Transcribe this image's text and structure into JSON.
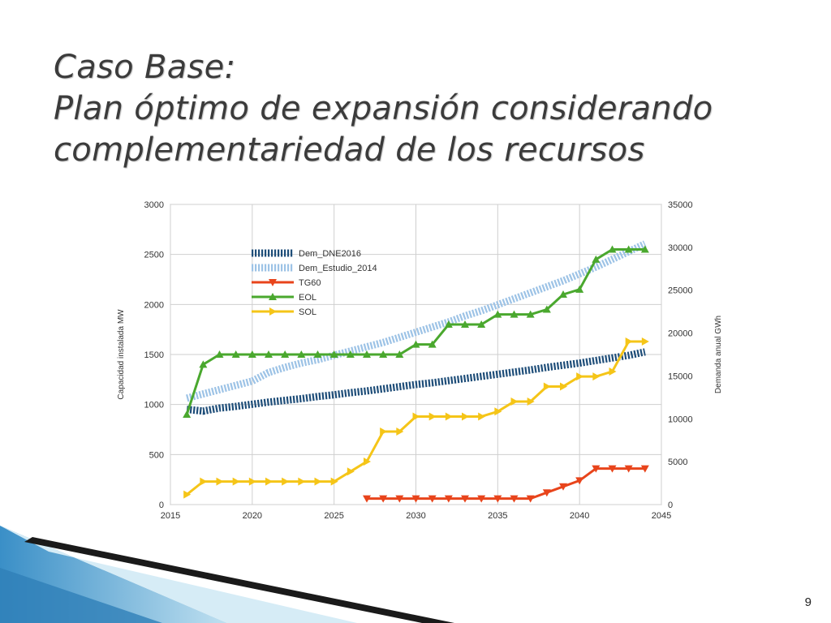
{
  "slide": {
    "title_line1": "Caso Base:",
    "title_line2": "Plan óptimo de expansión considerando",
    "title_line3": "complementariedad de los recursos",
    "page_number": "9"
  },
  "chart_data": {
    "type": "line",
    "title": "",
    "xlabel": "",
    "ylabel_left": "Capacidad instalada MW",
    "ylabel_right": "Demanda anual GWh",
    "xlim": [
      2015,
      2045
    ],
    "ylim_left": [
      0,
      3000
    ],
    "ylim_right": [
      0,
      35000
    ],
    "x_ticks": [
      2015,
      2020,
      2025,
      2030,
      2035,
      2040,
      2045
    ],
    "y_left_ticks": [
      0,
      500,
      1000,
      1500,
      2000,
      2500,
      3000
    ],
    "y_right_ticks": [
      0,
      5000,
      10000,
      15000,
      20000,
      25000,
      30000,
      35000
    ],
    "grid": true,
    "legend_position": "top-left",
    "series": [
      {
        "name": "Dem_DNE2016",
        "axis": "right",
        "color": "#1f4e79",
        "style": "dashed-thick",
        "marker": "none",
        "x": [
          2016,
          2017,
          2018,
          2019,
          2020,
          2021,
          2022,
          2023,
          2024,
          2025,
          2026,
          2027,
          2028,
          2029,
          2030,
          2031,
          2032,
          2033,
          2034,
          2035,
          2036,
          2037,
          2038,
          2039,
          2040,
          2041,
          2042,
          2043,
          2044
        ],
        "values": [
          11100,
          10900,
          11250,
          11450,
          11700,
          11950,
          12150,
          12350,
          12600,
          12800,
          13050,
          13250,
          13500,
          13750,
          14000,
          14200,
          14450,
          14700,
          14950,
          15200,
          15450,
          15700,
          16000,
          16250,
          16500,
          16800,
          17100,
          17400,
          17800
        ]
      },
      {
        "name": "Dem_Estudio_2014",
        "axis": "right",
        "color": "#9dc3e6",
        "style": "dashed-thick",
        "marker": "none",
        "x": [
          2016,
          2017,
          2018,
          2019,
          2020,
          2021,
          2022,
          2023,
          2024,
          2025,
          2026,
          2027,
          2028,
          2029,
          2030,
          2031,
          2032,
          2033,
          2034,
          2035,
          2036,
          2037,
          2038,
          2039,
          2040,
          2041,
          2042,
          2043,
          2044
        ],
        "values": [
          12400,
          12900,
          13400,
          13900,
          14400,
          15400,
          16000,
          16500,
          16900,
          17400,
          17900,
          18400,
          18900,
          19500,
          20100,
          20700,
          21300,
          22000,
          22600,
          23300,
          24000,
          24700,
          25400,
          26100,
          26900,
          27700,
          28600,
          29500,
          30400
        ]
      },
      {
        "name": "TG60",
        "axis": "left",
        "color": "#e8441b",
        "style": "solid",
        "marker": "triangle-down",
        "x": [
          2027,
          2028,
          2029,
          2030,
          2031,
          2032,
          2033,
          2034,
          2035,
          2036,
          2037,
          2038,
          2039,
          2040,
          2041,
          2042,
          2043,
          2044
        ],
        "values": [
          60,
          60,
          60,
          60,
          60,
          60,
          60,
          60,
          60,
          60,
          60,
          120,
          180,
          240,
          360,
          360,
          360,
          360
        ]
      },
      {
        "name": "EOL",
        "axis": "left",
        "color": "#4aa82e",
        "style": "solid",
        "marker": "triangle-up",
        "x": [
          2016,
          2017,
          2018,
          2019,
          2020,
          2021,
          2022,
          2023,
          2024,
          2025,
          2026,
          2027,
          2028,
          2029,
          2030,
          2031,
          2032,
          2033,
          2034,
          2035,
          2036,
          2037,
          2038,
          2039,
          2040,
          2041,
          2042,
          2043,
          2044
        ],
        "values": [
          900,
          1400,
          1500,
          1500,
          1500,
          1500,
          1500,
          1500,
          1500,
          1500,
          1500,
          1500,
          1500,
          1500,
          1600,
          1600,
          1800,
          1800,
          1800,
          1900,
          1900,
          1900,
          1950,
          2100,
          2150,
          2450,
          2550,
          2550,
          2550
        ]
      },
      {
        "name": "SOL",
        "axis": "left",
        "color": "#f5c518",
        "style": "solid",
        "marker": "triangle-right",
        "x": [
          2016,
          2017,
          2018,
          2019,
          2020,
          2021,
          2022,
          2023,
          2024,
          2025,
          2026,
          2027,
          2028,
          2029,
          2030,
          2031,
          2032,
          2033,
          2034,
          2035,
          2036,
          2037,
          2038,
          2039,
          2040,
          2041,
          2042,
          2043,
          2044
        ],
        "values": [
          100,
          230,
          230,
          230,
          230,
          230,
          230,
          230,
          230,
          230,
          330,
          430,
          730,
          730,
          880,
          880,
          880,
          880,
          880,
          930,
          1030,
          1030,
          1180,
          1180,
          1280,
          1280,
          1330,
          1630,
          1630
        ]
      }
    ]
  }
}
